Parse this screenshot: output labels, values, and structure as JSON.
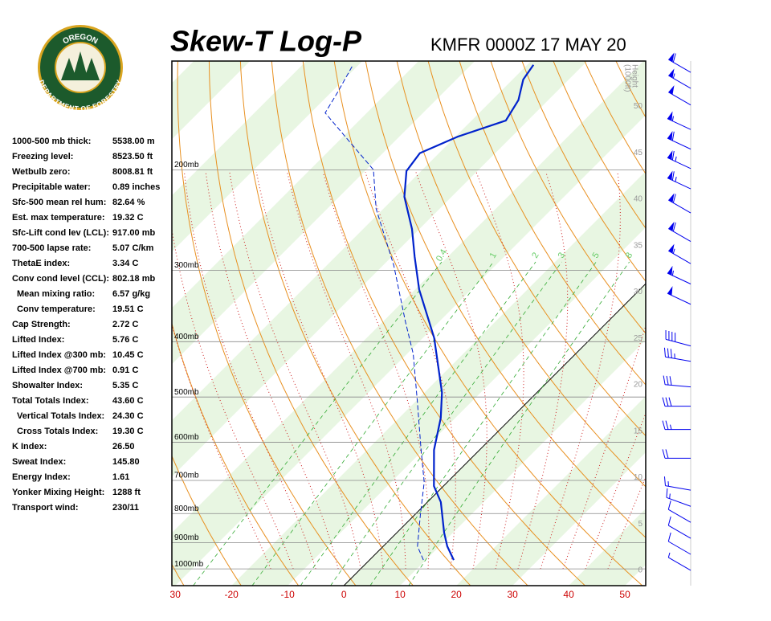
{
  "header": {
    "logo": {
      "top": "OREGON",
      "bottom": "DEPARTMENT OF FORESTRY"
    }
  },
  "stats": [
    [
      "1000-500 mb thick:",
      "5538.00 m"
    ],
    [
      "Freezing level:",
      "8523.50 ft"
    ],
    [
      "Wetbulb zero:",
      "8008.81 ft"
    ],
    [
      "Precipitable water:",
      "0.89 inches"
    ],
    [
      "Sfc-500 mean rel hum:",
      "82.64 %"
    ],
    [
      "Est. max temperature:",
      "19.32 C"
    ],
    [
      "Sfc-Lift cond lev (LCL):",
      "917.00 mb"
    ],
    [
      "700-500 lapse rate:",
      "5.07 C/km"
    ],
    [
      "ThetaE index:",
      "3.34 C"
    ],
    [
      "Conv cond level (CCL):",
      "802.18 mb"
    ],
    [
      "Mean mixing ratio:",
      "6.57 g/kg"
    ],
    [
      "Conv temperature:",
      "19.51 C"
    ],
    [
      "Cap Strength:",
      "2.72 C"
    ],
    [
      "Lifted Index:",
      "5.76 C"
    ],
    [
      "Lifted Index @300 mb:",
      "10.45 C"
    ],
    [
      "Lifted Index @700 mb:",
      "0.91 C"
    ],
    [
      "Showalter Index:",
      "5.35 C"
    ],
    [
      "Total Totals Index:",
      "43.60 C"
    ],
    [
      "Vertical Totals Index:",
      "24.30 C"
    ],
    [
      "Cross Totals Index:",
      "19.30 C"
    ],
    [
      "K Index:",
      "26.50"
    ],
    [
      "Sweat Index:",
      "145.80"
    ],
    [
      "Energy Index:",
      "1.61"
    ],
    [
      "Yonker Mixing Height:",
      "1288 ft"
    ],
    [
      "Transport wind:",
      "230/11"
    ]
  ],
  "chart_data": {
    "type": "skewt",
    "title": "Skew-T Log-P",
    "subtitle": "KMFR 0000Z 17 MAY 20",
    "xlim": [
      -30.6,
      53.7
    ],
    "xticks": [
      {
        "value": -30,
        "label": "30"
      },
      -20,
      -10,
      0,
      10,
      20,
      30,
      40,
      50
    ],
    "ylim": [
      1070,
      129
    ],
    "log_y": true,
    "yticks": [
      {
        "value": 1000,
        "label": "1000mb"
      },
      {
        "value": 900,
        "label": "900mb"
      },
      {
        "value": 800,
        "label": "800mb"
      },
      {
        "value": 700,
        "label": "700mb"
      },
      {
        "value": 600,
        "label": "600mb"
      },
      {
        "value": 500,
        "label": "500mb"
      },
      {
        "value": 400,
        "label": "400mb"
      },
      {
        "value": 300,
        "label": "300mb"
      },
      {
        "value": 200,
        "label": "200mb"
      }
    ],
    "height_label": [
      "Height",
      "(1000ft)"
    ],
    "heightlim": [
      -1.65,
      54.9
    ],
    "heightticks": [
      0,
      5,
      10,
      15,
      20,
      25,
      30,
      35,
      40,
      45,
      50
    ],
    "mixing_ratios": [
      {
        "value": 0.4,
        "label": "0.4"
      },
      1,
      2,
      3,
      5,
      8
    ],
    "mixing_label_pressure": 290,
    "series": [
      {
        "name": "Temperature",
        "color": "#0022cc",
        "dash": false,
        "pressure": [
          965,
          913,
          864,
          764,
          716,
          619,
          544,
          491,
          394,
          324,
          284,
          254,
          223,
          201,
          187,
          175,
          164,
          151,
          139,
          131
        ],
        "values": [
          15.0,
          11.4,
          8.4,
          2.4,
          -1.7,
          -8.1,
          -12.6,
          -16.9,
          -28.0,
          -39.3,
          -45.9,
          -51.3,
          -58.4,
          -62.6,
          -63.4,
          -59.6,
          -53.9,
          -55.3,
          -58.1,
          -58.9
        ]
      },
      {
        "name": "Dewpoint",
        "color": "#0022cc",
        "dash": true,
        "pressure": [
          965,
          913,
          802,
          705,
          619,
          510,
          420,
          369,
          294,
          234,
          200,
          175,
          159,
          146,
          131
        ],
        "values": [
          9.6,
          6.1,
          0.9,
          -4.1,
          -10.4,
          -19.6,
          -28.9,
          -36.0,
          -48.1,
          -61.3,
          -68.7,
          -79.6,
          -87.4,
          -88.9,
          -91.0
        ]
      }
    ],
    "winds": {
      "pressure": [
        135,
        144,
        154,
        170,
        184,
        199,
        216,
        238,
        267,
        292,
        317,
        344,
        407,
        433,
        480,
        519,
        570,
        640,
        728,
        777,
        829,
        884,
        943,
        1006
      ],
      "direction": [
        300,
        300,
        300,
        295,
        295,
        295,
        295,
        300,
        300,
        300,
        295,
        295,
        285,
        280,
        275,
        270,
        270,
        270,
        280,
        290,
        300,
        300,
        300,
        300
      ],
      "speed": [
        60,
        55,
        50,
        55,
        60,
        65,
        65,
        60,
        60,
        55,
        55,
        50,
        40,
        35,
        30,
        30,
        25,
        20,
        15,
        15,
        10,
        10,
        10,
        5
      ]
    }
  }
}
